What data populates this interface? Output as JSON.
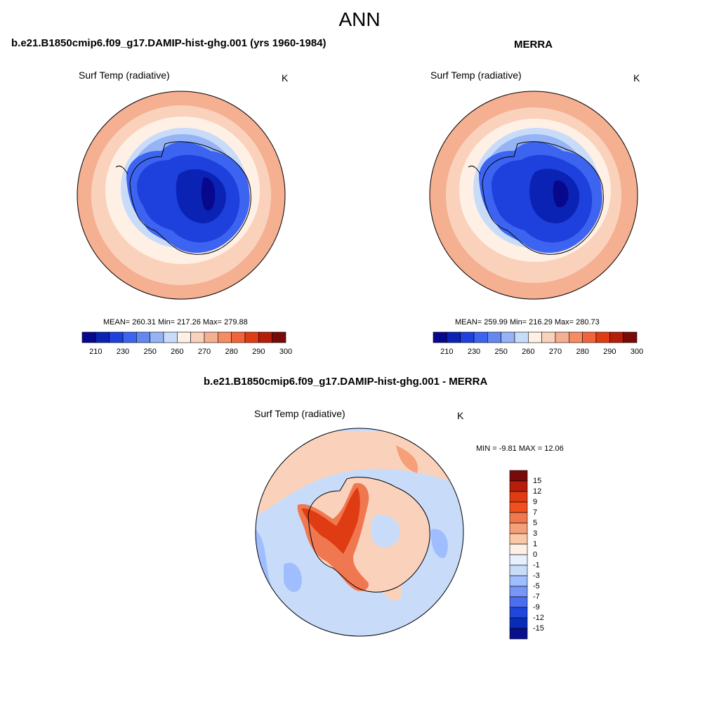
{
  "figure": {
    "title": "ANN"
  },
  "panels": [
    {
      "title": "b.e21.B1850cmip6.f09_g17.DAMIP-hist-ghg.001 (yrs 1960-1984)",
      "variable": "Surf Temp (radiative)",
      "units": "K",
      "stats": "MEAN= 260.31  Min= 217.26  Max= 279.88"
    },
    {
      "title": "MERRA",
      "variable": "Surf Temp (radiative)",
      "units": "K",
      "stats": "MEAN= 259.99  Min= 216.29  Max= 280.73"
    },
    {
      "title": "b.e21.B1850cmip6.f09_g17.DAMIP-hist-ghg.001 - MERRA",
      "variable": "Surf Temp (radiative)",
      "units": "K",
      "stats": "MIN =  -9.81 MAX =  12.06"
    }
  ],
  "colorbars": {
    "absolute": {
      "ticks": [
        "210",
        "230",
        "250",
        "260",
        "270",
        "280",
        "290",
        "300"
      ],
      "colors": [
        "#08088c",
        "#0a23b4",
        "#1e40dc",
        "#3c64f0",
        "#6488f0",
        "#96b4f5",
        "#c8dcfa",
        "#fff0e6",
        "#fad2bc",
        "#f5af91",
        "#f58c64",
        "#f0643c",
        "#e03c14",
        "#b41e0a",
        "#780a0a"
      ]
    },
    "difference": {
      "ticks": [
        "15",
        "12",
        "9",
        "7",
        "5",
        "3",
        "1",
        "0",
        "-1",
        "-3",
        "-5",
        "-7",
        "-9",
        "-12",
        "-15"
      ],
      "colors": [
        "#780a0a",
        "#b41e0a",
        "#e03c14",
        "#f0501e",
        "#f07850",
        "#f5a078",
        "#fac8a8",
        "#fff0e6",
        "#e6f0ff",
        "#c8dcfa",
        "#a0beff",
        "#7896f5",
        "#4b6ef0",
        "#1e46dc",
        "#0a2db9",
        "#0a0f8c"
      ]
    }
  }
}
